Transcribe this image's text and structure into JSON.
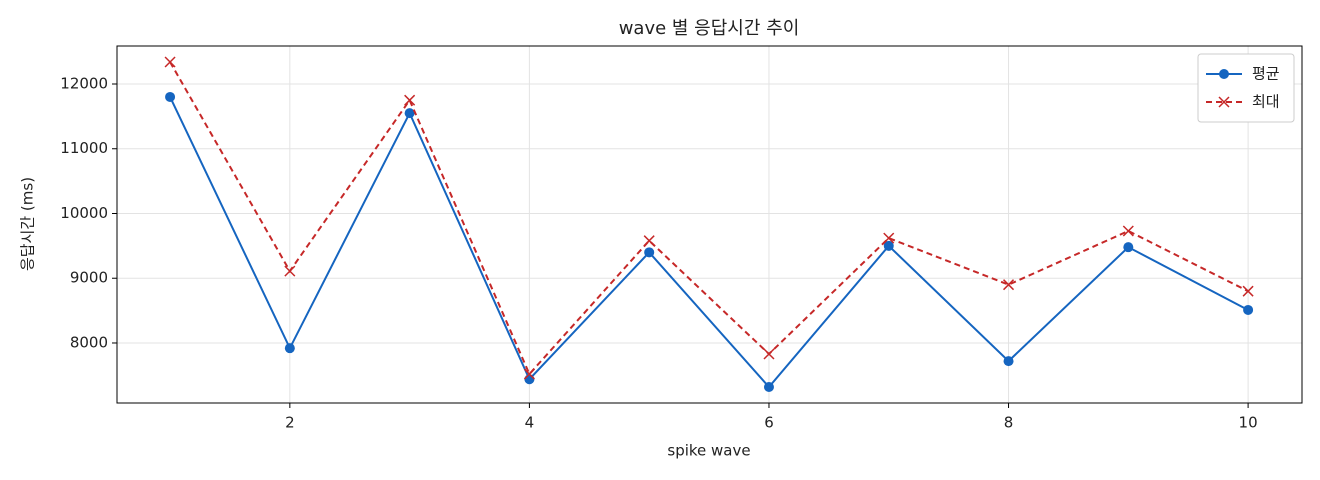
{
  "chart_data": {
    "type": "line",
    "title": "wave 별 응답시간 추이",
    "x_label": "spike wave",
    "y_label": "응답시간 (ms)",
    "x": [
      1,
      2,
      3,
      4,
      5,
      6,
      7,
      8,
      9,
      10
    ],
    "series": [
      {
        "name": "평균",
        "color": "#1565c0",
        "linestyle": "solid",
        "marker": "circle",
        "values": [
          11800,
          7920,
          11550,
          7440,
          9400,
          7320,
          9500,
          7720,
          9480,
          8510
        ]
      },
      {
        "name": "최대",
        "color": "#c62828",
        "linestyle": "dashed",
        "marker": "x",
        "values": [
          12340,
          9110,
          11750,
          7520,
          9580,
          7830,
          9620,
          8900,
          9730,
          8800
        ]
      }
    ],
    "xlim": [
      0.557,
      10.45
    ],
    "xticks": [
      2,
      4,
      6,
      8,
      10
    ],
    "ylim": [
      7073,
      12587
    ],
    "yticks": [
      8000,
      9000,
      10000,
      11000,
      12000
    ],
    "grid": true,
    "legend": "upper-right"
  }
}
